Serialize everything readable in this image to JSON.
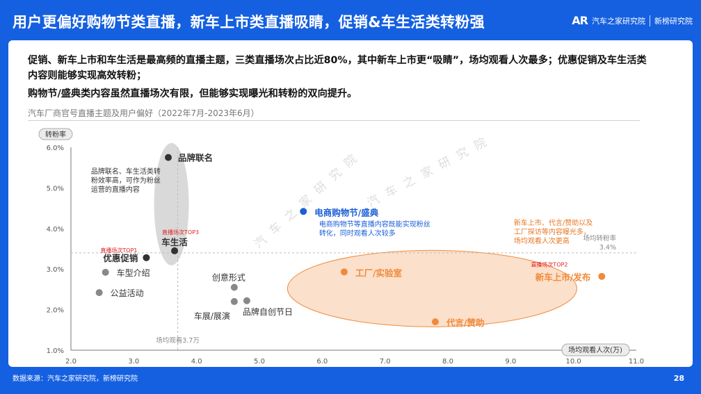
{
  "header": {
    "title": "用户更偏好购物节类直播，新车上市类直播吸睛，促销&车生活类转粉强",
    "brand_logo": "AR",
    "brand_name": "汽车之家研究院",
    "partner_name": "新榜研究院"
  },
  "lead": {
    "line1": "促销、新车上市和车生活是最高频的直播主题，三类直播场次占比近80%，其中新车上市更“吸睛”，场均观看人次最多；优惠促销及车生活类内容则能够实现高效转粉；",
    "line2": "购物节/盛典类内容虽然直播场次有限，但能够实现曝光和转粉的双向提升。"
  },
  "subtitle": "汽车厂商官号直播主题及用户偏好（2022年7月-2023年6月）",
  "watermark": "汽车之家研究院",
  "chart_data": {
    "type": "scatter",
    "xlabel": "场均观看人次(万)",
    "ylabel": "转粉率",
    "xlim": [
      2.0,
      11.0
    ],
    "ylim": [
      1.0,
      6.0
    ],
    "x_ticks": [
      "2.0",
      "3.0",
      "4.0",
      "5.0",
      "6.0",
      "7.0",
      "8.0",
      "9.0",
      "10.0",
      "11.0"
    ],
    "y_ticks": [
      "1.0%",
      "2.0%",
      "3.0%",
      "4.0%",
      "5.0%",
      "6.0%"
    ],
    "ref_x": 3.7,
    "ref_x_label": "场均观看3.7万",
    "ref_y": 3.4,
    "ref_y_label": "场均转粉率",
    "ref_y_value": "3.4%",
    "points": [
      {
        "name": "品牌联名",
        "x": 3.55,
        "y": 5.75,
        "group": "dark",
        "bold": true
      },
      {
        "name": "车生活",
        "x": 3.65,
        "y": 3.45,
        "group": "dark",
        "bold": true,
        "tag": "直播场次TOP3"
      },
      {
        "name": "优惠促销",
        "x": 3.2,
        "y": 3.28,
        "group": "dark",
        "bold": true,
        "tag": "直播场次TOP1"
      },
      {
        "name": "车型介绍",
        "x": 2.55,
        "y": 2.92,
        "group": "gray"
      },
      {
        "name": "公益活动",
        "x": 2.45,
        "y": 2.42,
        "group": "gray"
      },
      {
        "name": "创意形式",
        "x": 4.6,
        "y": 2.55,
        "group": "gray"
      },
      {
        "name": "车展/展演",
        "x": 4.6,
        "y": 2.2,
        "group": "gray"
      },
      {
        "name": "品牌自创节日",
        "x": 4.8,
        "y": 2.22,
        "group": "gray"
      },
      {
        "name": "电商购物节/盛典",
        "x": 5.7,
        "y": 4.42,
        "group": "blue",
        "bold": true
      },
      {
        "name": "工厂/实验室",
        "x": 6.35,
        "y": 2.93,
        "group": "orange",
        "bold": true
      },
      {
        "name": "新车上市/发布",
        "x": 10.45,
        "y": 2.82,
        "group": "orange",
        "bold": true,
        "tag": "直播场次TOP2"
      },
      {
        "name": "代言/赞助",
        "x": 7.8,
        "y": 1.7,
        "group": "orange",
        "bold": true
      }
    ],
    "annotations": [
      {
        "lines": [
          "品牌联名、车生活类转",
          "粉效率高，可作为粉丝",
          "运营的直播内容"
        ],
        "x": 2.32,
        "y": 5.35,
        "color": "#333333"
      },
      {
        "lines": [
          "电商购物节等直播内容既能实现粉丝",
          "转化，同时观看人次较多"
        ],
        "x": 5.95,
        "y": 4.05,
        "color": "#1a5fd6"
      },
      {
        "lines": [
          "新车上市、代言/赞助以及",
          "工厂探访等内容曝光多，",
          "场均观看人次更高"
        ],
        "x": 9.05,
        "y": 4.08,
        "color": "#e87722"
      }
    ],
    "colors": {
      "dark": "#333333",
      "gray": "#888888",
      "blue": "#1a5fd6",
      "orange": "#f08a3a",
      "tag": "#e02020",
      "axis": "#555555"
    }
  },
  "footer": {
    "source": "数据来源：汽车之家研究院，新榜研究院",
    "page": "28"
  }
}
